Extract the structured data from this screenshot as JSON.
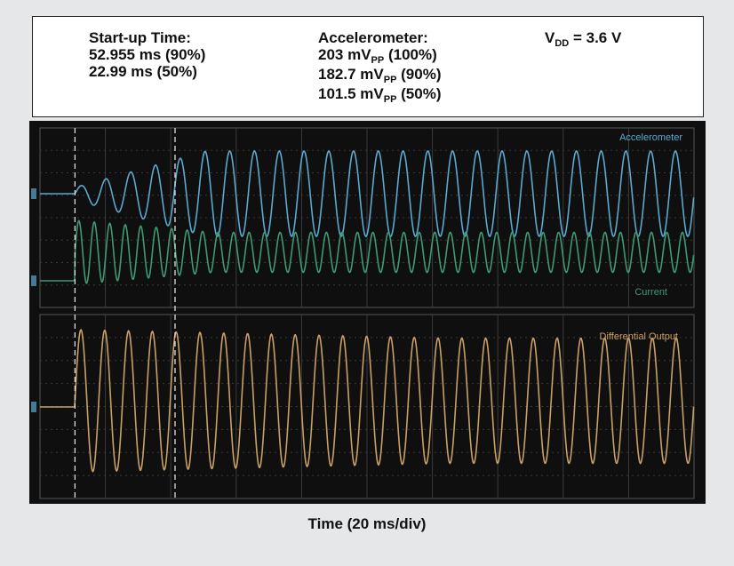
{
  "startup": {
    "title": "Start-up Time:",
    "line1": "52.955 ms (90%)",
    "line2": "22.99 ms (50%)"
  },
  "accel": {
    "title": "Accelerometer:",
    "v100": "203 mV",
    "v100_sub": "PP",
    "v100_tail": " (100%)",
    "v90": "182.7 mV",
    "v90_sub": "PP",
    "v90_tail": " (90%)",
    "v50": "101.5 mV",
    "v50_sub": "PP",
    "v50_tail": " (50%)"
  },
  "vdd": {
    "v": "V",
    "sub": "DD",
    "tail": " = 3.6 V"
  },
  "xlabel": "Time (20 ms/div)",
  "chart_data": {
    "type": "line",
    "title": "",
    "xlabel": "Time (20 ms/div)",
    "ylabel": "",
    "x_divisions": 10,
    "ms_per_div": 20,
    "xlim": [
      0,
      200
    ],
    "cursors_ms": [
      10.7,
      41.3
    ],
    "grid": true,
    "series": [
      {
        "name": "Accelerometer",
        "color": "#5aa9cf",
        "panel": "top",
        "start_ms": 10.7,
        "amp_percent_final": 100,
        "cycles": 25
      },
      {
        "name": "Current",
        "color": "#3f9a73",
        "panel": "top",
        "start_ms": 10.7,
        "cycles": 40
      },
      {
        "name": "Differential Output",
        "color": "#c9a064",
        "panel": "bottom",
        "start_ms": 10.7,
        "cycles": 26
      }
    ]
  }
}
